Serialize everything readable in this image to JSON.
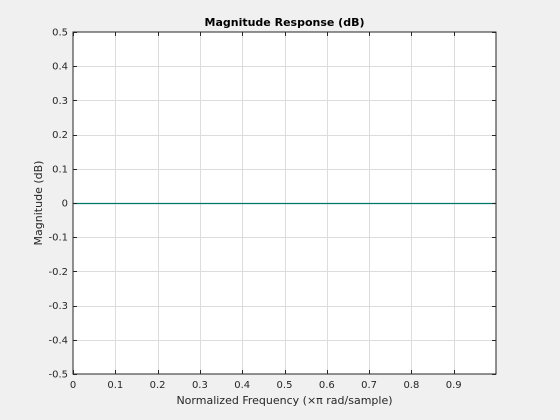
{
  "chart_data": {
    "type": "line",
    "title": "Magnitude Response (dB)",
    "xlabel": "Normalized Frequency (×π rad/sample)",
    "ylabel": "Magnitude (dB)",
    "xlim": [
      0,
      1
    ],
    "ylim": [
      -0.5,
      0.5
    ],
    "x_ticks": [
      0,
      0.1,
      0.2,
      0.3,
      0.4,
      0.5,
      0.6,
      0.7,
      0.8,
      0.9
    ],
    "x_tick_labels": [
      "0",
      "0.1",
      "0.2",
      "0.3",
      "0.4",
      "0.5",
      "0.6",
      "0.7",
      "0.8",
      "0.9"
    ],
    "y_ticks": [
      -0.5,
      -0.4,
      -0.3,
      -0.2,
      -0.1,
      0,
      0.1,
      0.2,
      0.3,
      0.4,
      0.5
    ],
    "y_tick_labels": [
      "-0.5",
      "-0.4",
      "-0.3",
      "-0.2",
      "-0.1",
      "0",
      "0.1",
      "0.2",
      "0.3",
      "0.4",
      "0.5"
    ],
    "grid": true,
    "series": [
      {
        "color": "#00766b",
        "x": [
          0,
          1
        ],
        "y": [
          0,
          0
        ]
      }
    ],
    "colors": {
      "background": "#f0f0f0",
      "axes_background": "#ffffff",
      "axis": "#262626",
      "grid": "#dcdcdc"
    }
  }
}
